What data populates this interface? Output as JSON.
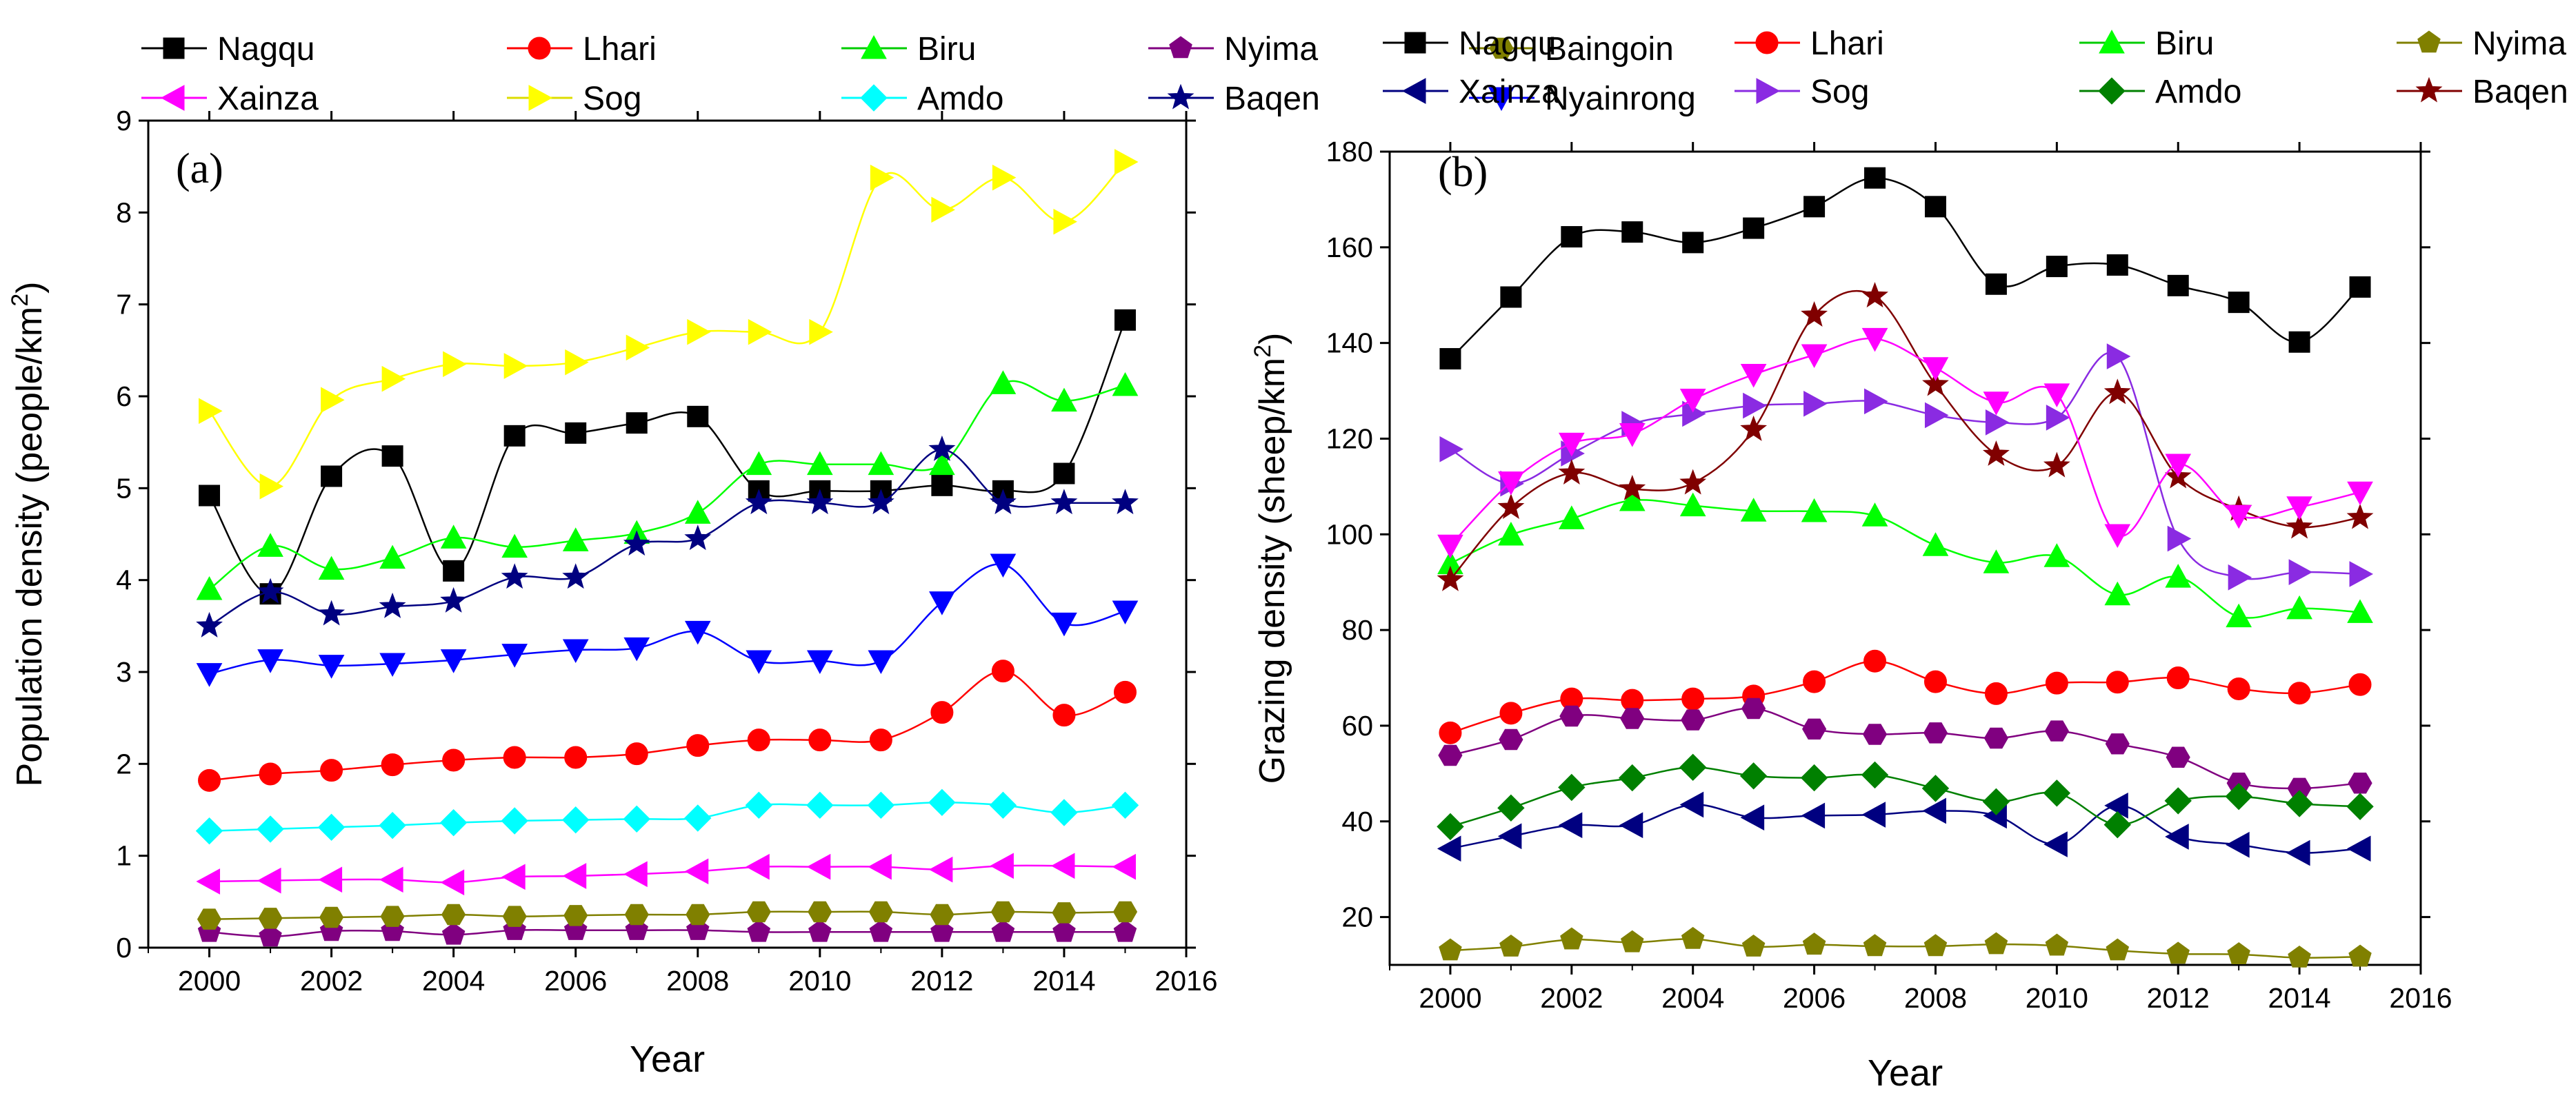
{
  "chart_data": [
    {
      "type": "line",
      "panel_label": "(a)",
      "xlabel": "Year",
      "ylabel_main": "Population density (people/km",
      "ylabel_sup": "2",
      "ylabel_close": ")",
      "xlim": [
        1999,
        2016
      ],
      "ylim": [
        0,
        9
      ],
      "xticks": [
        "2000",
        "2002",
        "2004",
        "2006",
        "2008",
        "2010",
        "2012",
        "2014",
        "2016"
      ],
      "yticks": [
        "0",
        "1",
        "2",
        "3",
        "4",
        "5",
        "6",
        "7",
        "8",
        "9"
      ],
      "x": [
        2000,
        2001,
        2002,
        2003,
        2004,
        2005,
        2006,
        2007,
        2008,
        2009,
        2010,
        2011,
        2012,
        2013,
        2014,
        2015
      ],
      "series": [
        {
          "name": "Nagqu",
          "color": "#000000",
          "marker": "square",
          "values": [
            4.92,
            3.85,
            5.13,
            5.35,
            4.1,
            5.57,
            5.6,
            5.71,
            5.78,
            4.97,
            4.97,
            4.97,
            5.03,
            4.97,
            5.16,
            6.83
          ]
        },
        {
          "name": "Lhari",
          "color": "#ff0000",
          "marker": "circle",
          "values": [
            1.82,
            1.89,
            1.93,
            1.99,
            2.04,
            2.07,
            2.07,
            2.11,
            2.2,
            2.26,
            2.26,
            2.26,
            2.56,
            3.01,
            2.53,
            2.78
          ]
        },
        {
          "name": "Biru",
          "color": "#00ff00",
          "marker": "triangle-up",
          "values": [
            3.9,
            4.37,
            4.12,
            4.24,
            4.46,
            4.36,
            4.43,
            4.51,
            4.73,
            5.26,
            5.26,
            5.26,
            5.26,
            6.14,
            5.95,
            6.12
          ]
        },
        {
          "name": "Nyima",
          "color": "#800080",
          "marker": "pentagon",
          "values": [
            0.17,
            0.12,
            0.18,
            0.18,
            0.14,
            0.19,
            0.19,
            0.19,
            0.19,
            0.17,
            0.17,
            0.17,
            0.17,
            0.17,
            0.17,
            0.17
          ]
        },
        {
          "name": "Baingoin",
          "color": "#808000",
          "marker": "hexagon",
          "values": [
            0.31,
            0.32,
            0.33,
            0.34,
            0.36,
            0.34,
            0.35,
            0.36,
            0.36,
            0.39,
            0.39,
            0.39,
            0.36,
            0.39,
            0.38,
            0.39
          ]
        },
        {
          "name": "Xainza",
          "color": "#ff00ff",
          "marker": "triangle-left",
          "values": [
            0.72,
            0.73,
            0.74,
            0.74,
            0.71,
            0.77,
            0.78,
            0.8,
            0.83,
            0.88,
            0.88,
            0.88,
            0.85,
            0.89,
            0.89,
            0.88
          ]
        },
        {
          "name": "Sog",
          "color": "#ffff00",
          "marker": "triangle-right",
          "values": [
            5.84,
            5.02,
            5.96,
            6.19,
            6.35,
            6.33,
            6.37,
            6.53,
            6.7,
            6.7,
            6.7,
            8.38,
            8.03,
            8.38,
            7.9,
            8.55
          ]
        },
        {
          "name": "Amdo",
          "color": "#00ffff",
          "marker": "diamond",
          "values": [
            1.27,
            1.29,
            1.31,
            1.33,
            1.36,
            1.38,
            1.39,
            1.4,
            1.41,
            1.55,
            1.55,
            1.55,
            1.58,
            1.55,
            1.47,
            1.55
          ]
        },
        {
          "name": "Baqen",
          "color": "#000080",
          "marker": "star",
          "values": [
            3.5,
            3.87,
            3.63,
            3.71,
            3.77,
            4.03,
            4.03,
            4.39,
            4.45,
            4.84,
            4.84,
            4.84,
            5.42,
            4.84,
            4.84,
            4.84
          ]
        },
        {
          "name": "Nyainrong",
          "color": "#0000ff",
          "marker": "triangle-down",
          "values": [
            2.98,
            3.13,
            3.07,
            3.09,
            3.13,
            3.19,
            3.24,
            3.26,
            3.44,
            3.12,
            3.12,
            3.12,
            3.76,
            4.17,
            3.53,
            3.66
          ]
        }
      ]
    },
    {
      "type": "line",
      "panel_label": "(b)",
      "xlabel": "Year",
      "ylabel_main": "Grazing density (sheep/km",
      "ylabel_sup": "2",
      "ylabel_close": ")",
      "xlim": [
        1999,
        2016
      ],
      "ylim": [
        10,
        180
      ],
      "xticks": [
        "2000",
        "2002",
        "2004",
        "2006",
        "2008",
        "2010",
        "2012",
        "2014",
        "2016"
      ],
      "yticks": [
        "20",
        "40",
        "60",
        "80",
        "100",
        "120",
        "140",
        "160",
        "180"
      ],
      "x": [
        2000,
        2001,
        2002,
        2003,
        2004,
        2005,
        2006,
        2007,
        2008,
        2009,
        2010,
        2011,
        2012,
        2013,
        2014,
        2015
      ],
      "series": [
        {
          "name": "Nagqu",
          "color": "#000000",
          "marker": "square",
          "values": [
            136.7,
            149.6,
            162.2,
            163.2,
            161,
            164,
            168.5,
            174.5,
            168.5,
            152.3,
            156,
            156.3,
            152,
            148.5,
            140.2,
            151.7
          ]
        },
        {
          "name": "Lhari",
          "color": "#ff0000",
          "marker": "circle",
          "values": [
            58.5,
            62.6,
            65.6,
            65.3,
            65.6,
            66.2,
            69.2,
            73.5,
            69.2,
            66.7,
            68.9,
            69.1,
            70,
            67.7,
            66.8,
            68.6
          ]
        },
        {
          "name": "Biru",
          "color": "#00ff00",
          "marker": "triangle-up",
          "values": [
            93.9,
            99.9,
            103.3,
            107.1,
            106,
            104.9,
            104.8,
            103.9,
            97.7,
            94.1,
            95.4,
            87.4,
            91.1,
            82.8,
            84.5,
            83.7
          ]
        },
        {
          "name": "Nyima",
          "color": "#808000",
          "marker": "pentagon",
          "values": [
            13,
            13.8,
            15.3,
            14.7,
            15.4,
            13.8,
            14.2,
            13.9,
            13.9,
            14.3,
            14,
            13,
            12.3,
            12.2,
            11.5,
            11.7
          ]
        },
        {
          "name": "Baingoin",
          "color": "#800080",
          "marker": "hexagon",
          "values": [
            53.8,
            57.1,
            62,
            61.5,
            61.2,
            63.6,
            59.3,
            58.2,
            58.5,
            57.4,
            58.9,
            56.2,
            53.4,
            48,
            46.9,
            48
          ]
        },
        {
          "name": "Xainza",
          "color": "#000080",
          "marker": "triangle-left",
          "values": [
            34.3,
            36.9,
            39.2,
            39.2,
            43.5,
            40.8,
            41.2,
            41.4,
            42.2,
            41.2,
            35.2,
            43.3,
            36.8,
            35.1,
            33.4,
            34.3
          ]
        },
        {
          "name": "Sog",
          "color": "#8a2be2",
          "marker": "triangle-right",
          "values": [
            117.8,
            110.6,
            116.9,
            123.1,
            125.2,
            126.9,
            127.3,
            127.8,
            124.9,
            123.4,
            124.4,
            137.2,
            99.1,
            91,
            92.1,
            91.7
          ]
        },
        {
          "name": "Amdo",
          "color": "#008000",
          "marker": "diamond",
          "values": [
            38.9,
            42.8,
            47.1,
            49.1,
            51.3,
            49.5,
            49.1,
            49.7,
            46.9,
            44.1,
            45.9,
            39.3,
            44.3,
            45.2,
            43.7,
            43.1
          ]
        },
        {
          "name": "Baqen",
          "color": "#800000",
          "marker": "star",
          "values": [
            90.5,
            105.6,
            112.8,
            109.5,
            110.7,
            121.9,
            145.8,
            149.8,
            131.3,
            116.7,
            114.3,
            129.6,
            112,
            105.2,
            101.5,
            103.5
          ]
        },
        {
          "name": "Nyainrong",
          "color": "#ff00ff",
          "marker": "triangle-down",
          "values": [
            97.7,
            110.9,
            119,
            121,
            128.2,
            133.4,
            137.5,
            140.9,
            134.8,
            127.6,
            129.3,
            99.9,
            114.6,
            103.9,
            105.7,
            108.8
          ]
        }
      ]
    }
  ]
}
